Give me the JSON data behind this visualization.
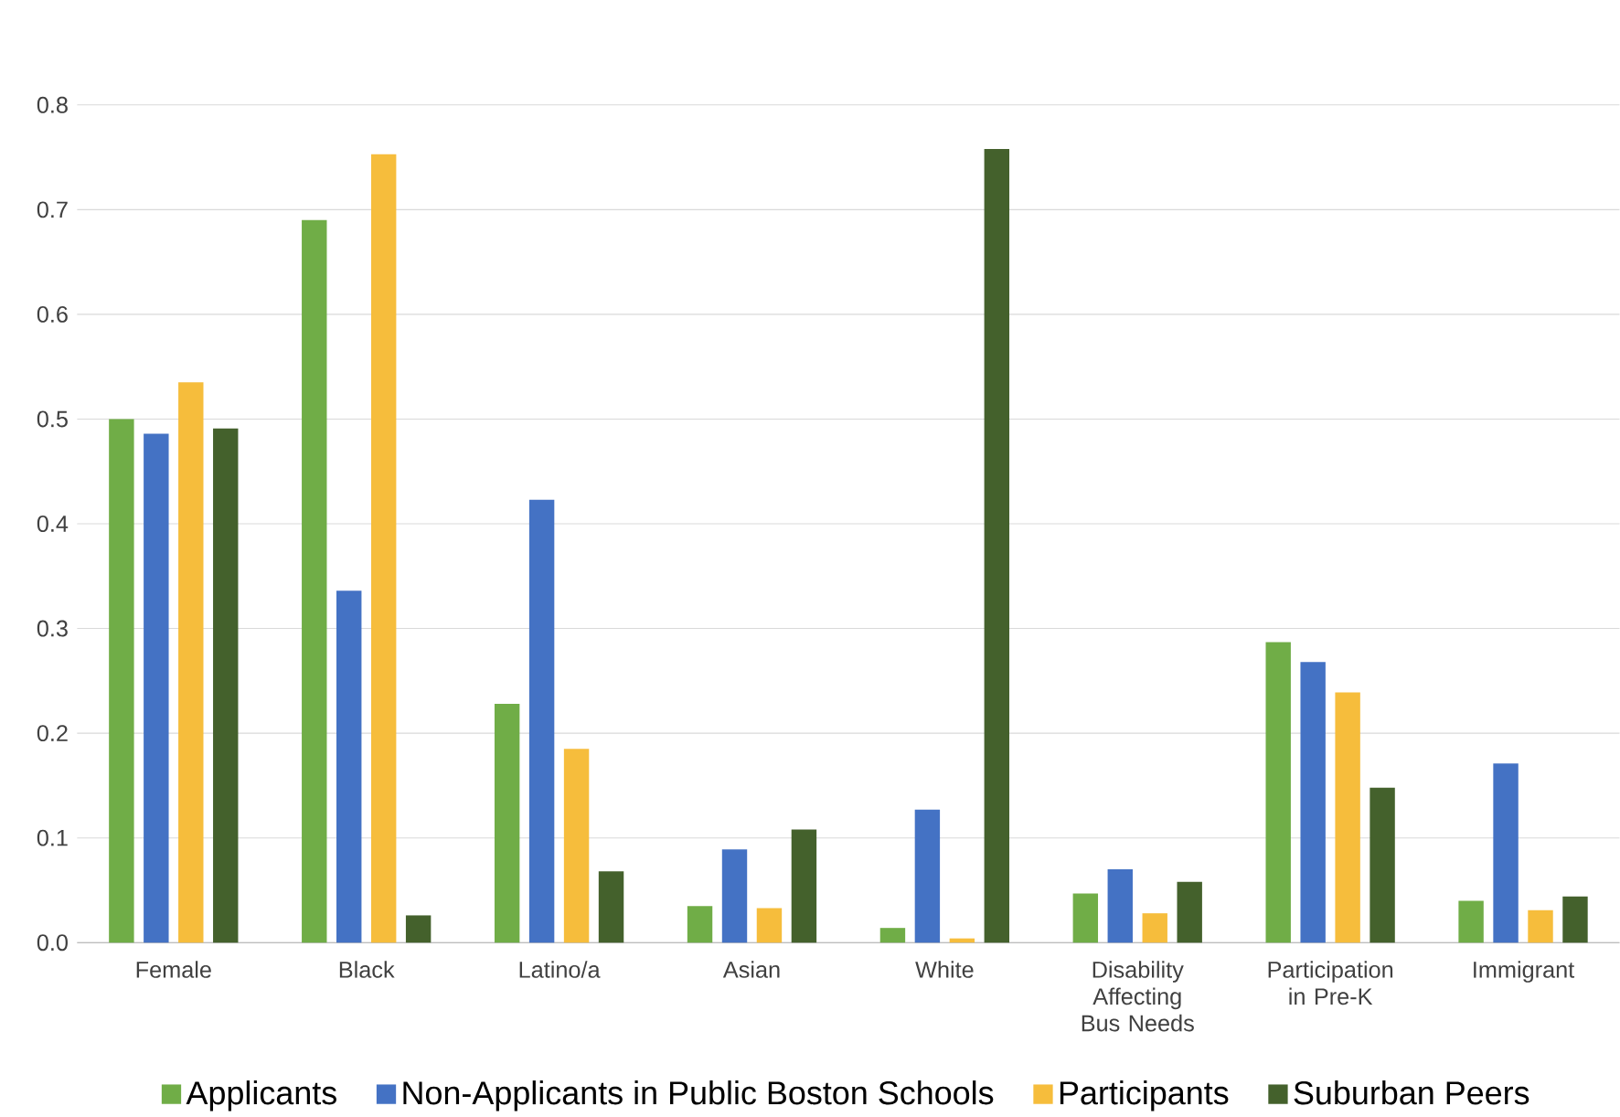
{
  "chart_data": {
    "type": "bar",
    "categories": [
      "Female",
      "Black",
      "Latino/a",
      "Asian",
      "White",
      "Disability Affecting Bus Needs",
      "Participation in Pre-K",
      "Immigrant"
    ],
    "series": [
      {
        "name": "Applicants",
        "color": "#70ad47",
        "values": [
          0.5,
          0.69,
          0.228,
          0.035,
          0.014,
          0.047,
          0.287,
          0.04
        ]
      },
      {
        "name": "Non-Applicants in Public Boston Schools",
        "color": "#4472c4",
        "values": [
          0.486,
          0.336,
          0.423,
          0.089,
          0.127,
          0.07,
          0.268,
          0.171
        ]
      },
      {
        "name": "Participants",
        "color": "#f6bd3c",
        "values": [
          0.535,
          0.753,
          0.185,
          0.033,
          0.004,
          0.028,
          0.239,
          0.031
        ]
      },
      {
        "name": "Suburban Peers",
        "color": "#44612c",
        "values": [
          0.491,
          0.026,
          0.068,
          0.108,
          0.758,
          0.058,
          0.148,
          0.044
        ]
      }
    ],
    "ylim": [
      0,
      0.8
    ],
    "yticks": [
      "0.0",
      0.1,
      0.2,
      0.3,
      0.4,
      0.5,
      0.6,
      0.7,
      0.8
    ],
    "grid": "y",
    "legend": "bottom"
  }
}
